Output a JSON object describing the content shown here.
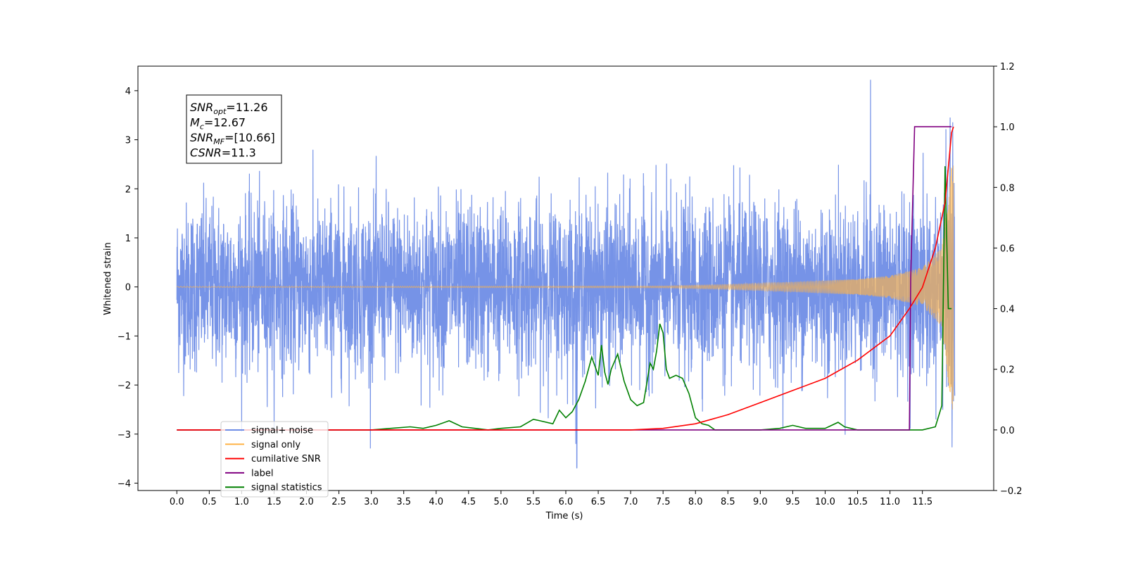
{
  "chart_data": {
    "type": "line",
    "xlabel": "Time (s)",
    "ylabel": "Whitened strain",
    "xlim": [
      -0.6,
      12.6
    ],
    "ylim": [
      -4.15,
      4.5
    ],
    "y2lim": [
      -0.2,
      1.2
    ],
    "x_ticks": [
      "0.0",
      "0.5",
      "1.0",
      "1.5",
      "2.0",
      "2.5",
      "3.0",
      "3.5",
      "4.0",
      "4.5",
      "5.0",
      "5.5",
      "6.0",
      "6.5",
      "7.0",
      "7.5",
      "8.0",
      "8.5",
      "9.0",
      "9.5",
      "10.0",
      "10.5",
      "11.0",
      "11.5"
    ],
    "y_ticks": [
      "4",
      "3",
      "2",
      "1",
      "0",
      "−1",
      "−2",
      "−3",
      "−4"
    ],
    "y2_ticks": [
      "1.2",
      "1.0",
      "0.8",
      "0.6",
      "0.4",
      "0.2",
      "0.0",
      "−0.2"
    ],
    "stats_box": [
      {
        "base": "SNR",
        "sub": "opt",
        "value": "=11.26"
      },
      {
        "base": "M",
        "sub": "c",
        "value": "=12.67"
      },
      {
        "base": "SNR",
        "sub": "MF",
        "value": "=[10.66]"
      },
      {
        "base": "CSNR",
        "sub": "",
        "value": "=11.3"
      }
    ],
    "series": [
      {
        "name": "signal+ noise",
        "color": "#6f8de6",
        "axis": "left",
        "note": "whitened noise, std ~0.85, peak ~4.1 at 10.7s"
      },
      {
        "name": "signal only",
        "color": "#ffb347",
        "axis": "left",
        "amplitude_envelope": {
          "x": [
            0,
            7.5,
            8.5,
            9.5,
            10.5,
            11.0,
            11.5,
            11.8,
            11.95
          ],
          "y": [
            0.01,
            0.02,
            0.05,
            0.1,
            0.16,
            0.23,
            0.4,
            0.8,
            2.5
          ]
        }
      },
      {
        "name": "cumilative SNR",
        "color": "#ff0000",
        "axis": "right",
        "x": [
          0,
          7.0,
          7.5,
          8.0,
          8.5,
          9.0,
          9.5,
          10.0,
          10.5,
          11.0,
          11.3,
          11.5,
          11.7,
          11.85,
          11.95,
          11.98
        ],
        "y": [
          0,
          0,
          0.005,
          0.02,
          0.05,
          0.09,
          0.13,
          0.17,
          0.23,
          0.31,
          0.4,
          0.47,
          0.6,
          0.75,
          0.98,
          1.0
        ]
      },
      {
        "name": "label",
        "color": "#800080",
        "axis": "right",
        "x": [
          0,
          11.3,
          11.32,
          11.38,
          11.95
        ],
        "y": [
          0,
          0,
          0.5,
          1.0,
          1.0
        ]
      },
      {
        "name": "signal statistics",
        "color": "#008000",
        "axis": "right",
        "x": [
          0,
          3.0,
          3.3,
          3.6,
          3.8,
          4.0,
          4.2,
          4.4,
          4.6,
          4.8,
          5.0,
          5.3,
          5.5,
          5.6,
          5.8,
          5.9,
          6.0,
          6.1,
          6.2,
          6.3,
          6.4,
          6.5,
          6.55,
          6.6,
          6.65,
          6.7,
          6.8,
          6.9,
          7.0,
          7.1,
          7.2,
          7.3,
          7.35,
          7.4,
          7.45,
          7.5,
          7.55,
          7.6,
          7.7,
          7.8,
          7.9,
          8.0,
          8.1,
          8.2,
          8.3,
          8.5,
          9.0,
          9.3,
          9.5,
          9.7,
          10.0,
          10.2,
          10.3,
          10.5,
          11.0,
          11.5,
          11.7,
          11.8,
          11.85,
          11.9,
          11.95
        ],
        "y": [
          0,
          0,
          0.005,
          0.01,
          0.005,
          0.015,
          0.03,
          0.01,
          0.005,
          0.0,
          0.005,
          0.01,
          0.035,
          0.03,
          0.02,
          0.065,
          0.04,
          0.06,
          0.1,
          0.16,
          0.24,
          0.18,
          0.28,
          0.19,
          0.15,
          0.2,
          0.25,
          0.16,
          0.1,
          0.08,
          0.09,
          0.22,
          0.2,
          0.26,
          0.35,
          0.32,
          0.2,
          0.17,
          0.18,
          0.17,
          0.12,
          0.04,
          0.02,
          0.015,
          0.0,
          0.0,
          0.0,
          0.005,
          0.015,
          0.005,
          0.005,
          0.025,
          0.01,
          0.0,
          0.0,
          0.0,
          0.01,
          0.08,
          0.87,
          0.4,
          0.4
        ]
      }
    ],
    "legend_position": "lower-left",
    "grid": false
  }
}
